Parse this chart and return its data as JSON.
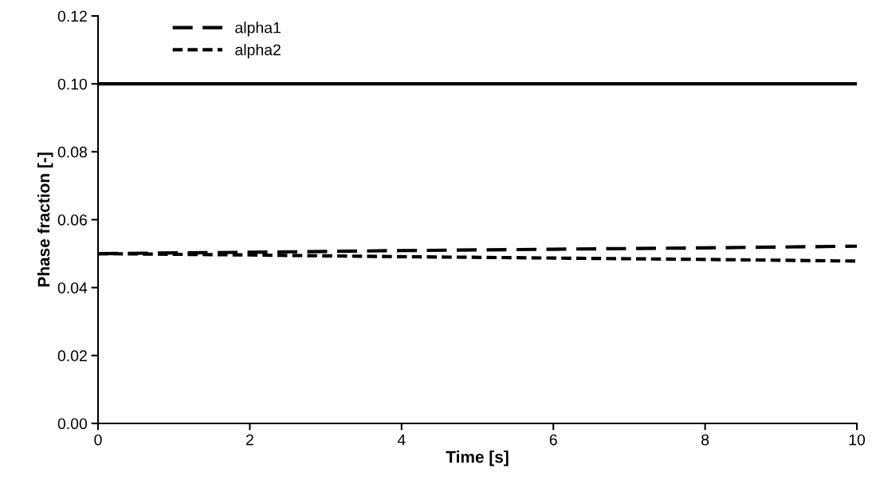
{
  "chart_data": {
    "type": "line",
    "xlabel": "Time [s]",
    "ylabel": "Phase fraction [-]",
    "x": [
      0,
      2,
      4,
      6,
      8,
      10
    ],
    "series": [
      {
        "name": "alpha1",
        "color": "#000000",
        "line_style": "dashed",
        "values": [
          0.05,
          0.0504,
          0.0509,
          0.0513,
          0.0517,
          0.0522
        ]
      },
      {
        "name": "alpha2",
        "color": "#000000",
        "line_style": "dotted",
        "values": [
          0.05,
          0.0496,
          0.0491,
          0.0487,
          0.0483,
          0.0478
        ]
      }
    ],
    "ref_lines": [
      {
        "axis": "y",
        "value": 0.1,
        "label": null,
        "color": "#000000",
        "line_style": "solid"
      }
    ],
    "xlim": [
      0,
      10
    ],
    "xticks": [
      0,
      2,
      4,
      6,
      8,
      10
    ],
    "ylim": [
      0,
      0.12
    ],
    "yticks": [
      {
        "value": 0,
        "label": "0.00"
      },
      {
        "value": 0.02,
        "label": "0.02"
      },
      {
        "value": 0.04,
        "label": "0.04"
      },
      {
        "value": 0.06,
        "label": "0.06"
      },
      {
        "value": 0.08,
        "label": "0.08"
      },
      {
        "value": 0.1,
        "label": "0.10"
      },
      {
        "value": 0.12,
        "label": "0.12"
      }
    ],
    "grid": false,
    "legend": "top left",
    "marker": "none"
  }
}
